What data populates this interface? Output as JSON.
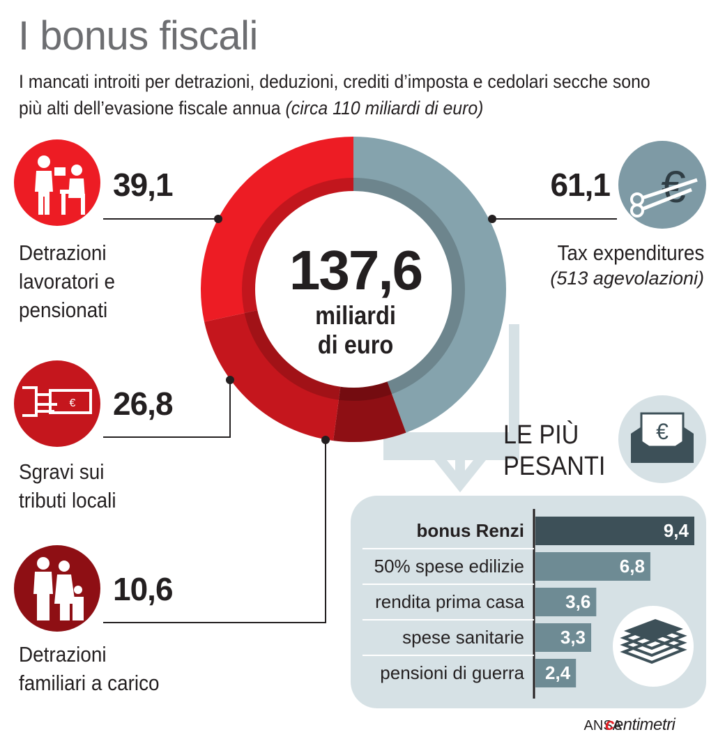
{
  "title": "I bonus fiscali",
  "subtitle": {
    "text": "I mancati introiti per detrazioni, deduzioni, crediti d’imposta e cedolari secche sono più alti dell’evasione fiscale annua ",
    "note": "(circa 110 miliardi di euro)"
  },
  "donut": {
    "total": "137,6",
    "unit_line1": "miliardi",
    "unit_line2": "di euro"
  },
  "categories": [
    {
      "value": "39,1",
      "label_lines": [
        "Detrazioni",
        "lavoratori e",
        "pensionati"
      ],
      "icon": "worker-and-pensioner-icon"
    },
    {
      "value": "26,8",
      "label_lines": [
        "Sgravi sui",
        "tributi locali"
      ],
      "icon": "hand-with-euro-note-icon"
    },
    {
      "value": "10,6",
      "label_lines": [
        "Detrazioni",
        "familiari a carico"
      ],
      "icon": "family-icon"
    },
    {
      "value": "61,1",
      "label_lines": [
        "Tax expenditures"
      ],
      "note": "(513 agevolazioni)",
      "icon": "scissors-euro-icon"
    }
  ],
  "heaviest": {
    "title_line1": "LE PIÙ",
    "title_line2": "PESANTI",
    "icon": "envelope-euro-icon",
    "money_icon": "banknote-stack-icon"
  },
  "chart_data": [
    {
      "type": "pie",
      "title": "",
      "total": 137.6,
      "categories": [
        "Detrazioni lavoratori e pensionati",
        "Sgravi sui tributi locali",
        "Detrazioni familiari a carico",
        "Tax expenditures"
      ],
      "values": [
        39.1,
        26.8,
        10.6,
        61.1
      ],
      "colors": [
        "#ed1c24",
        "#c5161d",
        "#8e0f14",
        "#85a3ad"
      ]
    },
    {
      "type": "bar",
      "title": "LE PIÙ PESANTI",
      "orientation": "horizontal",
      "categories": [
        "bonus Renzi",
        "50% spese edilizie",
        "rendita prima casa",
        "spese sanitarie",
        "pensioni di guerra"
      ],
      "values": [
        9.4,
        6.8,
        3.6,
        3.3,
        2.4
      ],
      "value_labels": [
        "9,4",
        "6,8",
        "3,6",
        "3,3",
        "2,4"
      ],
      "xlim": [
        0,
        9.4
      ],
      "colors": [
        "#3d5058",
        "#6e8b94",
        "#6e8b94",
        "#6e8b94",
        "#6e8b94"
      ]
    }
  ],
  "footer": {
    "source": "ANSA",
    "brand_mark": "c",
    "brand_rest": "entimetri"
  }
}
